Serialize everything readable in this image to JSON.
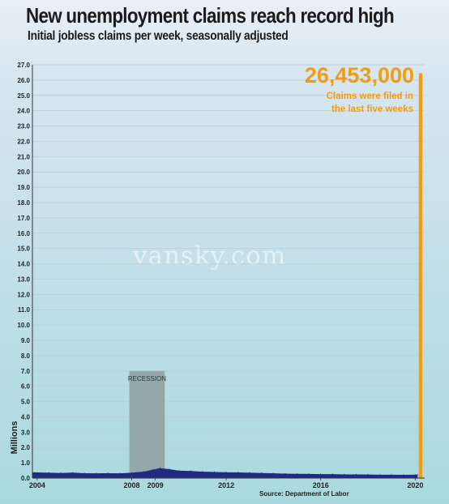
{
  "title": "New unemployment claims reach record high",
  "subtitle": "Initial jobless claims per week, seasonally adjusted",
  "watermark": "vansky.com",
  "source": "Source: Department of Labor",
  "colors": {
    "area": "#1f2a80",
    "highlight": "#f39c12",
    "recession": "#8f9f9e"
  },
  "chart_data": {
    "type": "area",
    "ylabel": "Millions",
    "ylim": [
      0,
      27
    ],
    "y_ticks": [
      "0.0",
      "1.0",
      "2.0",
      "3.0",
      "4.0",
      "5.0",
      "6.0",
      "7.0",
      "8.0",
      "9.0",
      "10.0",
      "11.0",
      "12.0",
      "13.0",
      "14.0",
      "15.0",
      "16.0",
      "17.0",
      "18.0",
      "19.0",
      "20.0",
      "21.0",
      "22.0",
      "23.0",
      "24.0",
      "25.0",
      "26.0",
      "27.0"
    ],
    "x_ticks": [
      "2004",
      "2008",
      "2009",
      "2012",
      "2016",
      "2020"
    ],
    "xlim": [
      2003.8,
      2020.4
    ],
    "recession": {
      "label": "RECESSION",
      "start": 2007.9,
      "end": 2009.4,
      "height": 7.0
    },
    "series": [
      {
        "values": [
          [
            2003.8,
            0.38
          ],
          [
            2004.5,
            0.35
          ],
          [
            2005.0,
            0.33
          ],
          [
            2005.5,
            0.36
          ],
          [
            2006.0,
            0.32
          ],
          [
            2006.5,
            0.31
          ],
          [
            2007.0,
            0.32
          ],
          [
            2007.5,
            0.31
          ],
          [
            2008.0,
            0.35
          ],
          [
            2008.5,
            0.42
          ],
          [
            2008.9,
            0.55
          ],
          [
            2009.2,
            0.65
          ],
          [
            2009.6,
            0.58
          ],
          [
            2010.0,
            0.48
          ],
          [
            2010.5,
            0.46
          ],
          [
            2011.0,
            0.42
          ],
          [
            2011.5,
            0.4
          ],
          [
            2012.0,
            0.38
          ],
          [
            2012.5,
            0.37
          ],
          [
            2013.0,
            0.35
          ],
          [
            2013.5,
            0.33
          ],
          [
            2014.0,
            0.31
          ],
          [
            2014.5,
            0.29
          ],
          [
            2015.0,
            0.28
          ],
          [
            2015.5,
            0.27
          ],
          [
            2016.0,
            0.26
          ],
          [
            2016.5,
            0.26
          ],
          [
            2017.0,
            0.24
          ],
          [
            2017.5,
            0.24
          ],
          [
            2018.0,
            0.23
          ],
          [
            2018.5,
            0.22
          ],
          [
            2019.0,
            0.22
          ],
          [
            2019.5,
            0.21
          ],
          [
            2020.0,
            0.22
          ],
          [
            2020.1,
            0.22
          ]
        ]
      }
    ],
    "highlight": {
      "value": "26,453,000",
      "total_millions": 26.453,
      "start": 2020.15,
      "end": 2020.3,
      "note_lines": [
        "Claims were filed in",
        "the last five weeks"
      ]
    }
  }
}
